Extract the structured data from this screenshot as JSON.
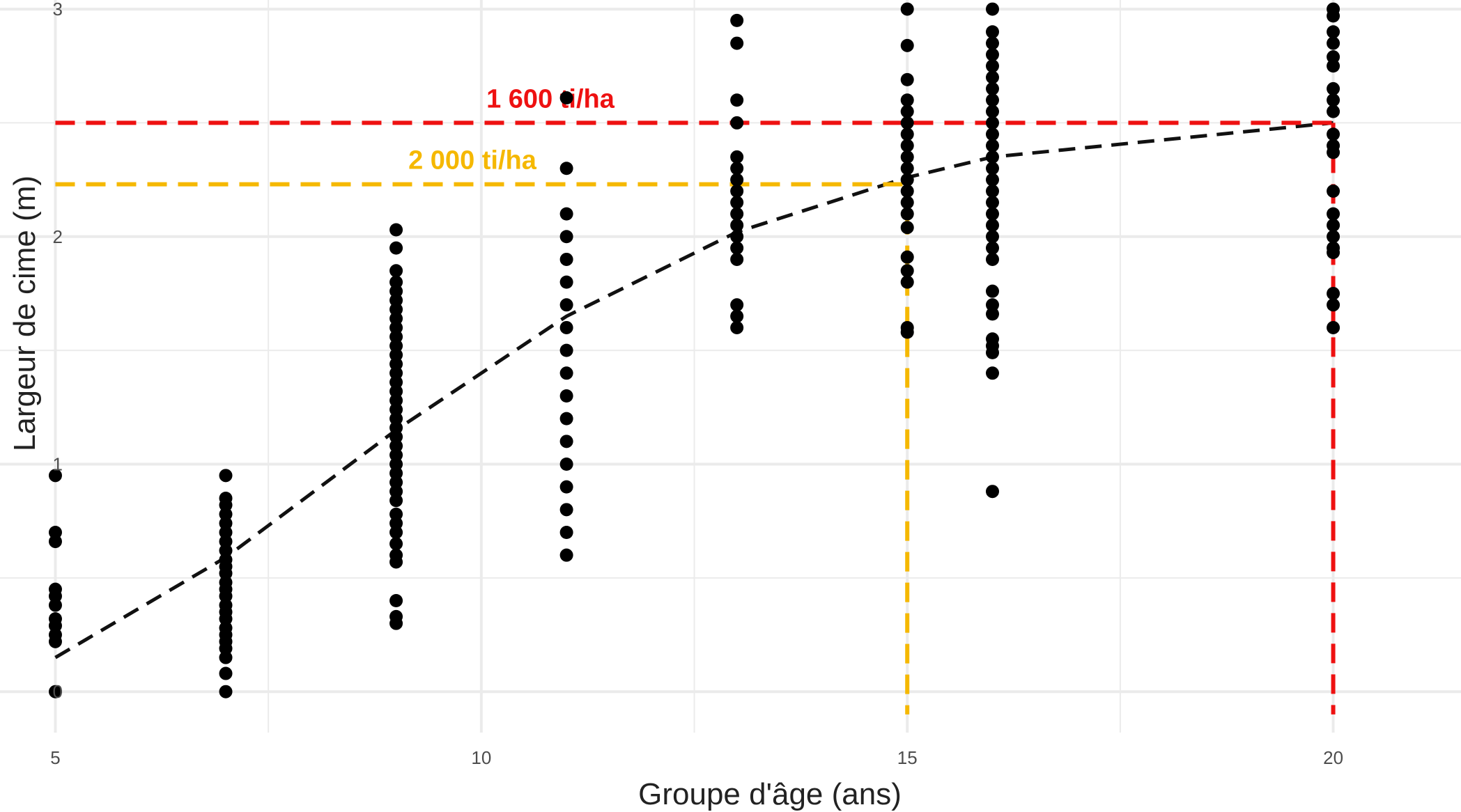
{
  "chart_data": {
    "type": "scatter",
    "xlabel": "Groupe d'âge (ans)",
    "ylabel": "Largeur de cime (m)",
    "xlim": [
      4.35,
      21.5
    ],
    "ylim": [
      -0.18,
      3.04
    ],
    "xticks": [
      5,
      10,
      15,
      20
    ],
    "yticks": [
      0,
      1,
      2,
      3
    ],
    "grid": true,
    "points": [
      {
        "x": 5,
        "y": [
          0.95,
          0.7,
          0.66,
          0.45,
          0.42,
          0.38,
          0.32,
          0.29,
          0.25,
          0.22,
          0.0
        ]
      },
      {
        "x": 7,
        "y": [
          0.95,
          0.85,
          0.82,
          0.78,
          0.74,
          0.7,
          0.66,
          0.62,
          0.58,
          0.55,
          0.52,
          0.48,
          0.45,
          0.42,
          0.38,
          0.35,
          0.32,
          0.28,
          0.25,
          0.22,
          0.19,
          0.15,
          0.08,
          0.0
        ]
      },
      {
        "x": 9,
        "y": [
          2.03,
          1.95,
          1.85,
          1.8,
          1.76,
          1.72,
          1.68,
          1.64,
          1.6,
          1.56,
          1.52,
          1.48,
          1.44,
          1.4,
          1.36,
          1.32,
          1.28,
          1.24,
          1.2,
          1.16,
          1.12,
          1.08,
          1.04,
          1.0,
          0.96,
          0.92,
          0.88,
          0.84,
          0.78,
          0.74,
          0.7,
          0.65,
          0.6,
          0.57,
          0.4,
          0.33,
          0.3
        ]
      },
      {
        "x": 11,
        "y": [
          2.61,
          2.3,
          2.1,
          2.0,
          1.9,
          1.8,
          1.7,
          1.6,
          1.5,
          1.4,
          1.3,
          1.2,
          1.1,
          1.0,
          0.9,
          0.8,
          0.7,
          0.6
        ]
      },
      {
        "x": 13,
        "y": [
          2.95,
          2.85,
          2.6,
          2.5,
          2.35,
          2.3,
          2.25,
          2.2,
          2.15,
          2.1,
          2.05,
          2.0,
          1.95,
          1.9,
          1.7,
          1.65,
          1.6
        ]
      },
      {
        "x": 15,
        "y": [
          3.0,
          2.84,
          2.69,
          2.6,
          2.55,
          2.5,
          2.45,
          2.4,
          2.35,
          2.3,
          2.25,
          2.2,
          2.15,
          2.1,
          2.04,
          1.91,
          1.85,
          1.8,
          1.6,
          1.58
        ]
      },
      {
        "x": 16,
        "y": [
          3.0,
          2.9,
          2.85,
          2.8,
          2.75,
          2.7,
          2.65,
          2.6,
          2.55,
          2.5,
          2.45,
          2.4,
          2.35,
          2.3,
          2.25,
          2.2,
          2.15,
          2.1,
          2.05,
          2.0,
          1.95,
          1.9,
          1.76,
          1.7,
          1.66,
          1.55,
          1.52,
          1.49,
          1.4,
          0.88
        ]
      },
      {
        "x": 20,
        "y": [
          3.0,
          2.97,
          2.9,
          2.85,
          2.79,
          2.75,
          2.65,
          2.6,
          2.55,
          2.45,
          2.4,
          2.37,
          2.2,
          2.1,
          2.05,
          2.0,
          1.95,
          1.93,
          1.75,
          1.7,
          1.6
        ]
      }
    ],
    "trend": {
      "x": [
        5,
        7,
        9,
        11,
        13,
        15,
        16,
        20
      ],
      "y": [
        0.15,
        0.59,
        1.15,
        1.65,
        2.02,
        2.26,
        2.35,
        2.5
      ]
    },
    "reference_lines": [
      {
        "label": "1 600 ti/ha",
        "y": 2.5,
        "x": 20,
        "color": "#ee1111"
      },
      {
        "label": "2 000 ti/ha",
        "y": 2.23,
        "x": 15,
        "color": "#f5b800"
      }
    ]
  }
}
